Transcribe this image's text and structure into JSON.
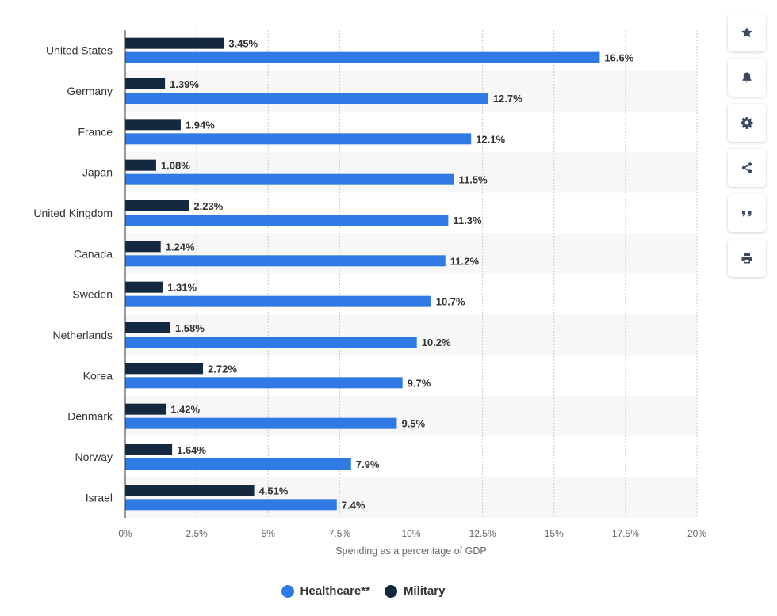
{
  "colors": {
    "healthcare": "#2f7ae5",
    "military": "#142840",
    "band": "#f7f7f7",
    "grid": "#cccccc",
    "icon": "#3b4960"
  },
  "toolbar": {
    "buttons": [
      {
        "name": "star-icon"
      },
      {
        "name": "bell-icon"
      },
      {
        "name": "gear-icon"
      },
      {
        "name": "share-icon"
      },
      {
        "name": "quote-icon"
      },
      {
        "name": "print-icon"
      }
    ]
  },
  "chart_data": {
    "type": "bar",
    "orientation": "horizontal",
    "categories": [
      "United States",
      "Germany",
      "France",
      "Japan",
      "United Kingdom",
      "Canada",
      "Sweden",
      "Netherlands",
      "Korea",
      "Denmark",
      "Norway",
      "Israel"
    ],
    "series": [
      {
        "name": "Military",
        "values": [
          3.45,
          1.39,
          1.94,
          1.08,
          2.23,
          1.24,
          1.31,
          1.58,
          2.72,
          1.42,
          1.64,
          4.51
        ],
        "labels": [
          "3.45%",
          "1.39%",
          "1.94%",
          "1.08%",
          "2.23%",
          "1.24%",
          "1.31%",
          "1.58%",
          "2.72%",
          "1.42%",
          "1.64%",
          "4.51%"
        ]
      },
      {
        "name": "Healthcare**",
        "values": [
          16.6,
          12.7,
          12.1,
          11.5,
          11.3,
          11.2,
          10.7,
          10.2,
          9.7,
          9.5,
          7.9,
          7.4
        ],
        "labels": [
          "16.6%",
          "12.7%",
          "12.1%",
          "11.5%",
          "11.3%",
          "11.2%",
          "10.7%",
          "10.2%",
          "9.7%",
          "9.5%",
          "7.9%",
          "7.4%"
        ]
      }
    ],
    "xlabel": "Spending as a percentage of GDP",
    "xlim": [
      0,
      20
    ],
    "xticks": [
      0,
      2.5,
      5,
      7.5,
      10,
      12.5,
      15,
      17.5,
      20
    ],
    "xtick_labels": [
      "0%",
      "2.5%",
      "5%",
      "7.5%",
      "10%",
      "12.5%",
      "15%",
      "17.5%",
      "20%"
    ],
    "legend": {
      "placement": "bottom",
      "items": [
        "Healthcare**",
        "Military"
      ]
    },
    "grid": true
  }
}
